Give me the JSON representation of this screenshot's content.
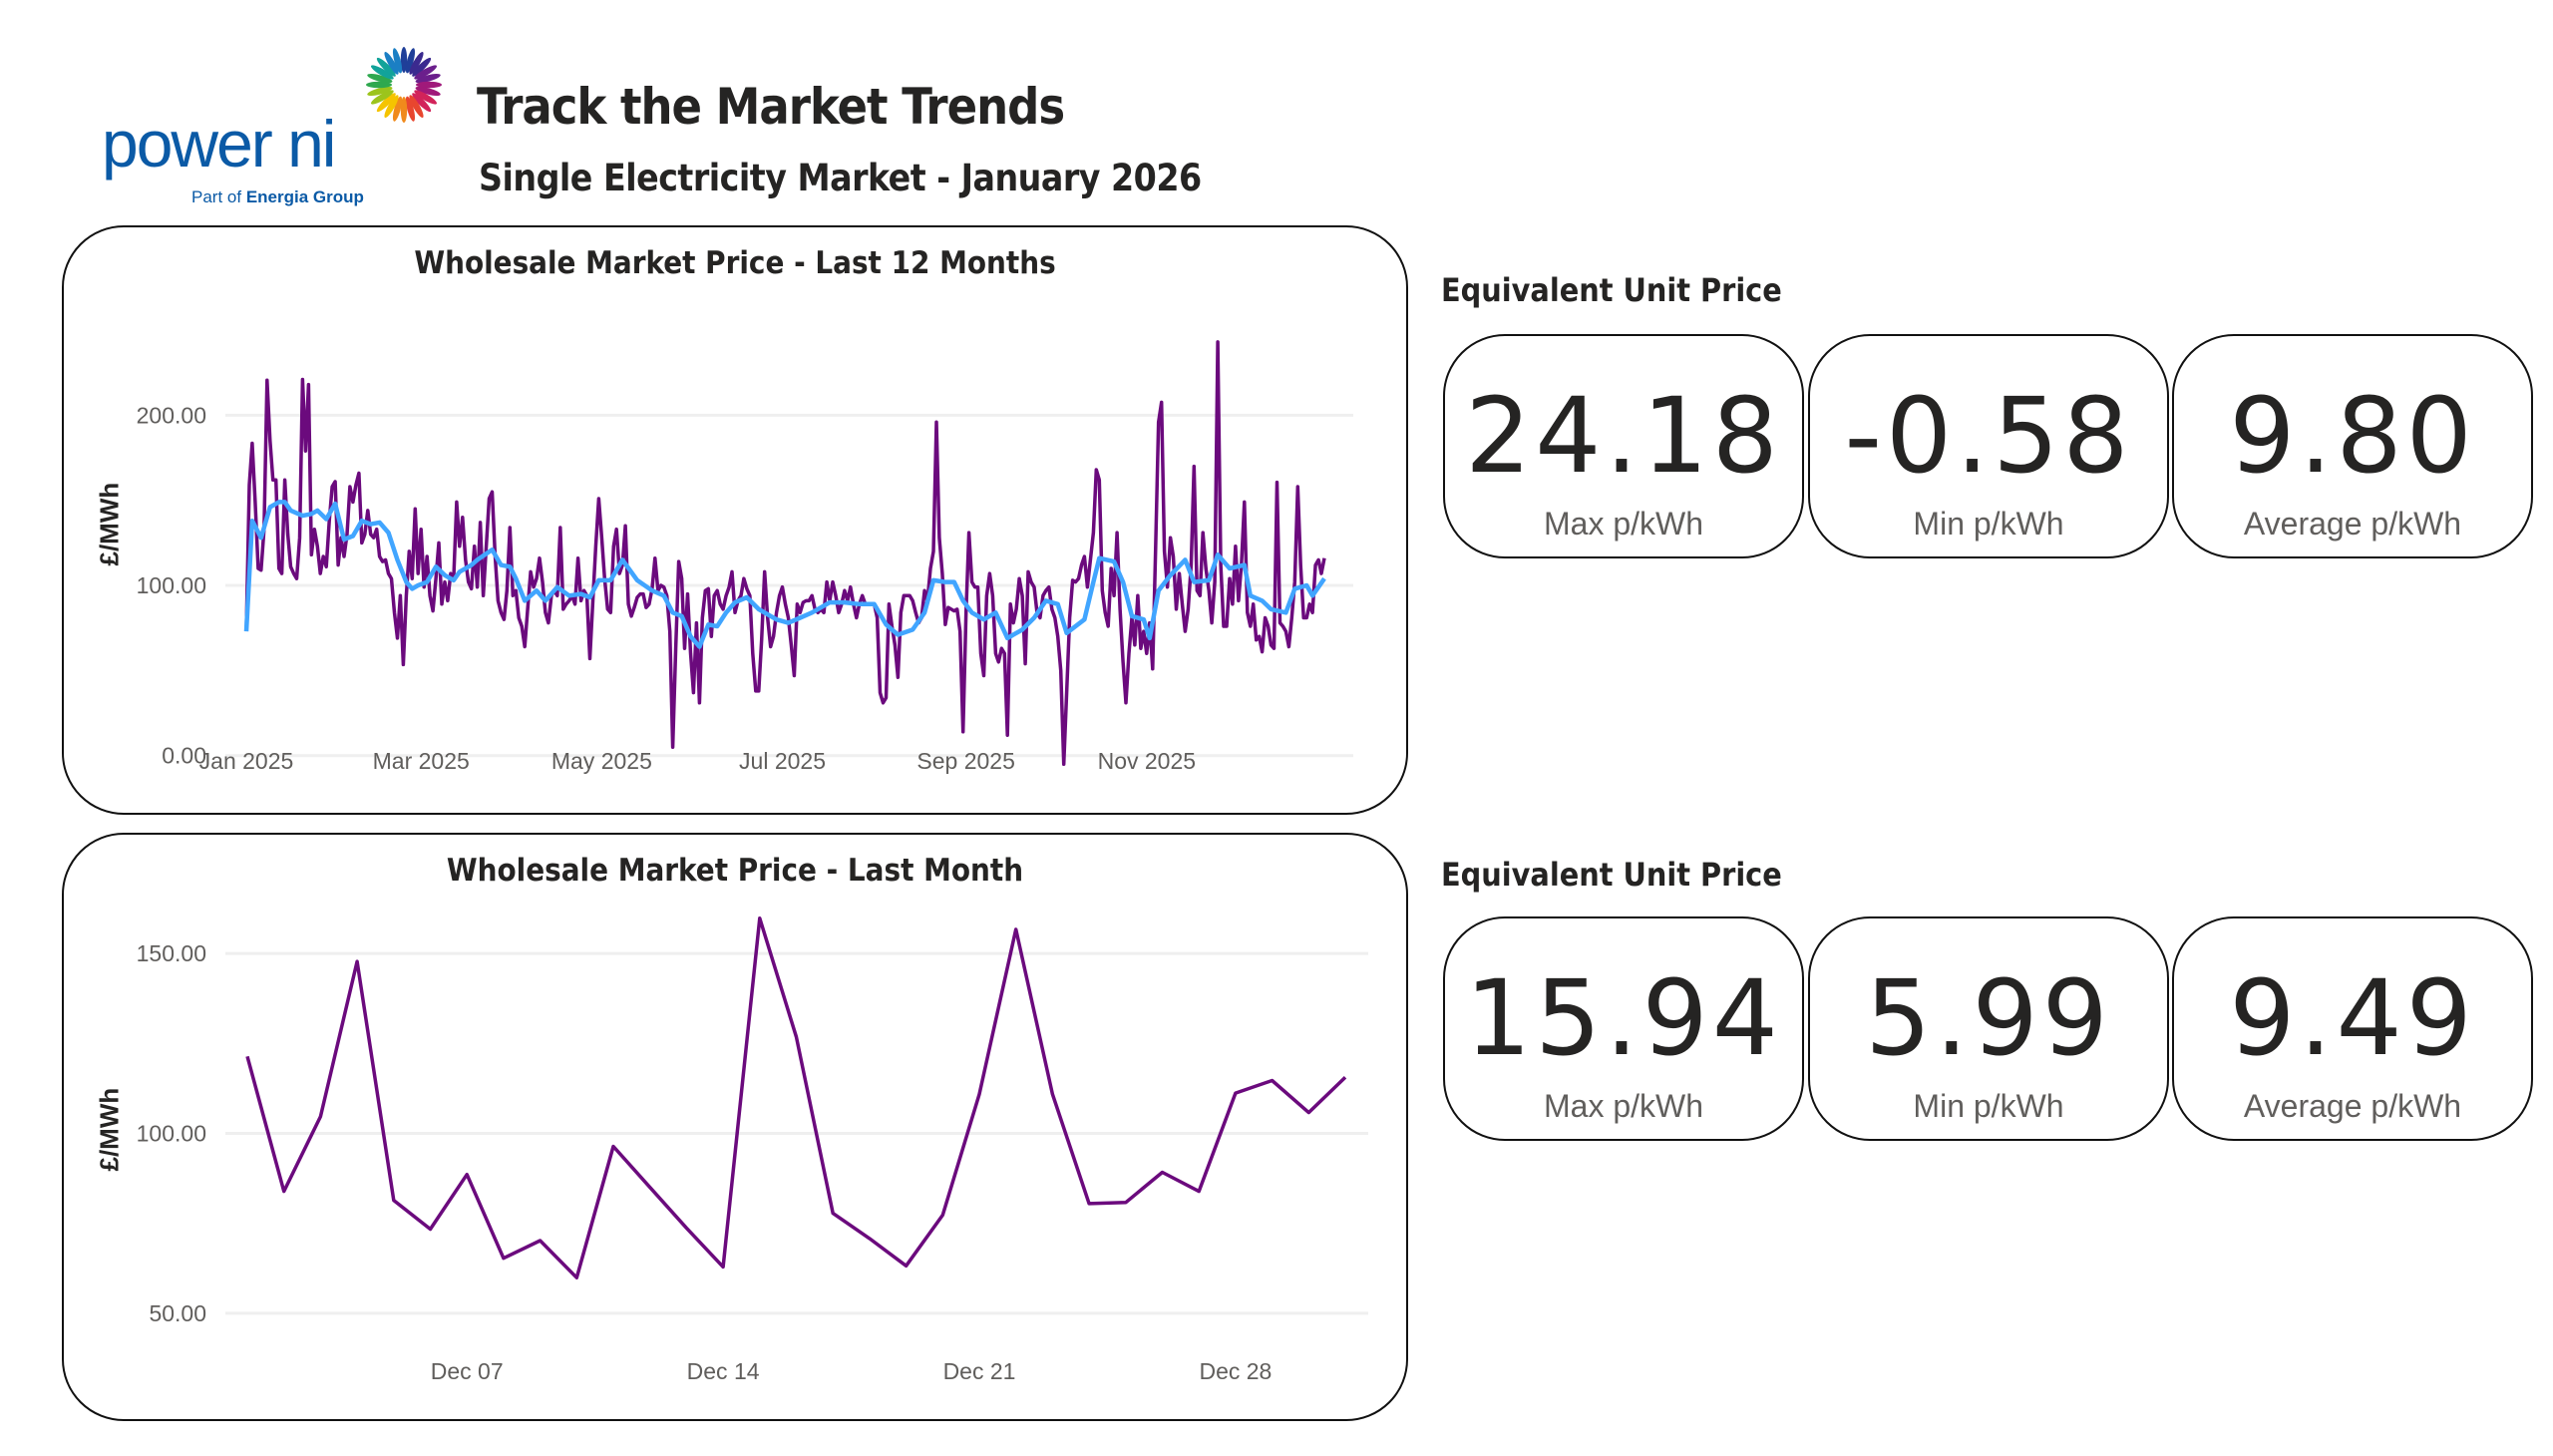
{
  "header": {
    "logo_text": "power ni",
    "logo_tagline_prefix": "Part of ",
    "logo_tagline_brand": "Energia Group",
    "title": "Track the Market Trends",
    "subtitle": "Single Electricity Market - January 2026"
  },
  "colors": {
    "daily_price": "#6b0a7d",
    "average": "#41a5ff",
    "gridline": "#efefef",
    "logo_blue": "#0b5aa6",
    "text": "#252423",
    "muted": "#605e5c"
  },
  "kpi_groups": [
    {
      "heading": "Equivalent Unit Price",
      "cards": [
        {
          "value": "24.18",
          "label": "Max p/kWh"
        },
        {
          "value": "-0.58",
          "label": "Min p/kWh"
        },
        {
          "value": "9.80",
          "label": "Average p/kWh"
        }
      ]
    },
    {
      "heading": "Equivalent Unit Price",
      "cards": [
        {
          "value": "15.94",
          "label": "Max p/kWh"
        },
        {
          "value": "5.99",
          "label": "Min p/kWh"
        },
        {
          "value": "9.49",
          "label": "Average p/kWh"
        }
      ]
    }
  ],
  "chart_data": [
    {
      "type": "line",
      "title": "Wholesale Market Price - Last 12 Months",
      "ylabel": "£/MWh",
      "xlabel": "",
      "x_range": [
        "2025-01-01",
        "2025-12-31"
      ],
      "frequency": "daily",
      "ylim": [
        -40,
        250
      ],
      "yticks": [
        0,
        100,
        200
      ],
      "ytick_labels": [
        "0.00",
        "100.00",
        "200.00"
      ],
      "xticks": [
        "2025-01-01",
        "2025-03-01",
        "2025-05-01",
        "2025-07-01",
        "2025-09-01",
        "2025-11-01"
      ],
      "xtick_labels": [
        "Jan 2025",
        "Mar 2025",
        "May 2025",
        "Jul 2025",
        "Sep 2025",
        "Nov 2025"
      ],
      "grid": true,
      "legend": "none",
      "series": [
        {
          "color": "#6b0a7d",
          "values": [
            73.6,
            159,
            183.5,
            149,
            110,
            109,
            133,
            220.6,
            185,
            162,
            162,
            110,
            107,
            162,
            130,
            111,
            107,
            104,
            128,
            221,
            179,
            218,
            118,
            133,
            123,
            107,
            117,
            111,
            138,
            158,
            161,
            112,
            128,
            117,
            130,
            158,
            149,
            159,
            166,
            125,
            130,
            144,
            130,
            128,
            133,
            117,
            114,
            115,
            107,
            104,
            84,
            69,
            94,
            53.5,
            94,
            120,
            104,
            145,
            107,
            133,
            99,
            117,
            94,
            85,
            104,
            125,
            89,
            102,
            91,
            107,
            104,
            149,
            123,
            140,
            115,
            102,
            98,
            123,
            99,
            137,
            94,
            123,
            151,
            155,
            117,
            91,
            84,
            80,
            97,
            134,
            94,
            97,
            81,
            76,
            64,
            86,
            108,
            99,
            104,
            116,
            102,
            84,
            78,
            94,
            97,
            94,
            134,
            86,
            89,
            91,
            94,
            89,
            116,
            91,
            97,
            94,
            57,
            91,
            123,
            151,
            128,
            104,
            86,
            84,
            123,
            133,
            107,
            112,
            135,
            89,
            82,
            87,
            93,
            95,
            95,
            87,
            89,
            98,
            116,
            97,
            100,
            99,
            94,
            73,
            5,
            63,
            114,
            104,
            63,
            95,
            60,
            37,
            78,
            31,
            81,
            97,
            98,
            70,
            94,
            97,
            89,
            86,
            94,
            99,
            108,
            84,
            91,
            94,
            104,
            98,
            94,
            60,
            38,
            38,
            68,
            108,
            81,
            64,
            70,
            84,
            94,
            99,
            89,
            81,
            65,
            47,
            89,
            84,
            90,
            91,
            91,
            94,
            86,
            84,
            86,
            84,
            102,
            91,
            102,
            94,
            84,
            89,
            97,
            91,
            99,
            89,
            81,
            89,
            94,
            89,
            89,
            89,
            89,
            81,
            37,
            31,
            34,
            89,
            76,
            65,
            46,
            84,
            94,
            94,
            94,
            91,
            84,
            78,
            81,
            97,
            91,
            110,
            120,
            196,
            128,
            107,
            77,
            87,
            86,
            85,
            86,
            73,
            14,
            84,
            131,
            102,
            99,
            99,
            60,
            47,
            94,
            107,
            94,
            60,
            55,
            63,
            60,
            12,
            89,
            78,
            86,
            104,
            94,
            54,
            108,
            102,
            99,
            84,
            81,
            94,
            97,
            99,
            86,
            81,
            70,
            50,
            -5,
            37,
            81,
            103,
            102,
            104,
            112,
            117,
            99,
            115,
            131,
            168,
            162,
            97,
            84,
            76,
            110,
            94,
            131,
            86,
            55,
            31,
            60,
            81,
            65,
            94,
            63,
            73,
            60,
            78,
            51,
            120,
            196,
            207.6,
            120,
            99,
            128,
            117,
            86,
            107,
            89,
            73,
            86,
            112,
            170,
            97,
            94,
            131,
            110,
            97,
            78,
            102,
            243,
            112,
            76,
            76,
            104,
            89,
            123,
            91,
            112,
            149,
            84,
            76,
            89,
            68,
            70,
            61,
            81,
            76,
            65,
            63,
            160.6,
            78,
            76,
            73,
            64,
            81,
            102,
            158,
            112,
            81,
            81,
            89,
            84,
            112,
            115,
            107,
            116
          ]
        },
        {
          "color": "#41a5ff",
          "points": [
            [
              "2025-01-01",
              73
            ],
            [
              "2025-01-03",
              138
            ],
            [
              "2025-01-06",
              128
            ],
            [
              "2025-01-09",
              146
            ],
            [
              "2025-01-12",
              149
            ],
            [
              "2025-01-14",
              149
            ],
            [
              "2025-01-16",
              144
            ],
            [
              "2025-01-20",
              141
            ],
            [
              "2025-01-23",
              142
            ],
            [
              "2025-01-25",
              144
            ],
            [
              "2025-01-28",
              139
            ],
            [
              "2025-01-31",
              148
            ],
            [
              "2025-02-03",
              127
            ],
            [
              "2025-02-06",
              129
            ],
            [
              "2025-02-09",
              138
            ],
            [
              "2025-02-12",
              136
            ],
            [
              "2025-02-15",
              137
            ],
            [
              "2025-02-18",
              131
            ],
            [
              "2025-02-21",
              115
            ],
            [
              "2025-02-24",
              102
            ],
            [
              "2025-02-26",
              98
            ],
            [
              "2025-02-28",
              100
            ],
            [
              "2025-03-03",
              102
            ],
            [
              "2025-03-06",
              111
            ],
            [
              "2025-03-09",
              106
            ],
            [
              "2025-03-12",
              103
            ],
            [
              "2025-03-14",
              108
            ],
            [
              "2025-03-18",
              112
            ],
            [
              "2025-03-20",
              115
            ],
            [
              "2025-03-25",
              121
            ],
            [
              "2025-03-28",
              112
            ],
            [
              "2025-03-31",
              111
            ],
            [
              "2025-04-02",
              104
            ],
            [
              "2025-04-05",
              91
            ],
            [
              "2025-04-09",
              97
            ],
            [
              "2025-04-12",
              91
            ],
            [
              "2025-04-16",
              99
            ],
            [
              "2025-04-20",
              94
            ],
            [
              "2025-04-24",
              95
            ],
            [
              "2025-04-27",
              93
            ],
            [
              "2025-04-30",
              103
            ],
            [
              "2025-05-04",
              103
            ],
            [
              "2025-05-08",
              115
            ],
            [
              "2025-05-13",
              103
            ],
            [
              "2025-05-18",
              97
            ],
            [
              "2025-05-22",
              94
            ],
            [
              "2025-05-25",
              84
            ],
            [
              "2025-05-28",
              82
            ],
            [
              "2025-05-31",
              70
            ],
            [
              "2025-06-03",
              64
            ],
            [
              "2025-06-06",
              77
            ],
            [
              "2025-06-09",
              76
            ],
            [
              "2025-06-12",
              84
            ],
            [
              "2025-06-15",
              90
            ],
            [
              "2025-06-19",
              93
            ],
            [
              "2025-06-23",
              86
            ],
            [
              "2025-06-29",
              80
            ],
            [
              "2025-07-03",
              78
            ],
            [
              "2025-07-07",
              81
            ],
            [
              "2025-07-11",
              84
            ],
            [
              "2025-07-17",
              90
            ],
            [
              "2025-07-22",
              90
            ],
            [
              "2025-07-27",
              89
            ],
            [
              "2025-08-01",
              89
            ],
            [
              "2025-08-05",
              77
            ],
            [
              "2025-08-09",
              71
            ],
            [
              "2025-08-14",
              74
            ],
            [
              "2025-08-18",
              84
            ],
            [
              "2025-08-21",
              103
            ],
            [
              "2025-08-25",
              102
            ],
            [
              "2025-08-28",
              102
            ],
            [
              "2025-08-31",
              91
            ],
            [
              "2025-09-03",
              84
            ],
            [
              "2025-09-07",
              80
            ],
            [
              "2025-09-11",
              84
            ],
            [
              "2025-09-15",
              69
            ],
            [
              "2025-09-20",
              74
            ],
            [
              "2025-09-24",
              81
            ],
            [
              "2025-09-28",
              91
            ],
            [
              "2025-10-02",
              89
            ],
            [
              "2025-10-05",
              72
            ],
            [
              "2025-10-11",
              80
            ],
            [
              "2025-10-14",
              102
            ],
            [
              "2025-10-16",
              116
            ],
            [
              "2025-10-21",
              114
            ],
            [
              "2025-10-24",
              102
            ],
            [
              "2025-10-27",
              82
            ],
            [
              "2025-10-31",
              80
            ],
            [
              "2025-11-02",
              69
            ],
            [
              "2025-11-05",
              97
            ],
            [
              "2025-11-09",
              106
            ],
            [
              "2025-11-14",
              115
            ],
            [
              "2025-11-17",
              102
            ],
            [
              "2025-11-22",
              103
            ],
            [
              "2025-11-25",
              118
            ],
            [
              "2025-11-29",
              110
            ],
            [
              "2025-12-04",
              112
            ],
            [
              "2025-12-06",
              94
            ],
            [
              "2025-12-10",
              91
            ],
            [
              "2025-12-13",
              86
            ],
            [
              "2025-12-18",
              84
            ],
            [
              "2025-12-21",
              98
            ],
            [
              "2025-12-25",
              100
            ],
            [
              "2025-12-27",
              94
            ],
            [
              "2025-12-31",
              104
            ]
          ]
        }
      ]
    },
    {
      "type": "line",
      "title": "Wholesale Market Price - Last Month",
      "ylabel": "£/MWh",
      "xlabel": "",
      "x_range": [
        "2025-12-01",
        "2025-12-31"
      ],
      "frequency": "daily",
      "ylim": [
        40,
        165
      ],
      "yticks": [
        50,
        100,
        150
      ],
      "ytick_labels": [
        "50.00",
        "100.00",
        "150.00"
      ],
      "xticks": [
        "2025-12-07",
        "2025-12-14",
        "2025-12-21",
        "2025-12-28"
      ],
      "xtick_labels": [
        "Dec 07",
        "Dec 14",
        "Dec 21",
        "Dec 28"
      ],
      "grid": true,
      "legend": "none",
      "series": [
        {
          "color": "#6b0a7d",
          "values": [
            121.4,
            83.9,
            104.7,
            147.8,
            81.4,
            73.4,
            88.6,
            65.3,
            70.2,
            59.9,
            96.4,
            85.0,
            73.7,
            62.9,
            159.8,
            126.8,
            77.8,
            70.8,
            63.2,
            77.3,
            110.9,
            156.7,
            110.9,
            80.5,
            80.8,
            89.2,
            83.9,
            111.2,
            114.7,
            105.8,
            115.6
          ]
        }
      ]
    }
  ]
}
